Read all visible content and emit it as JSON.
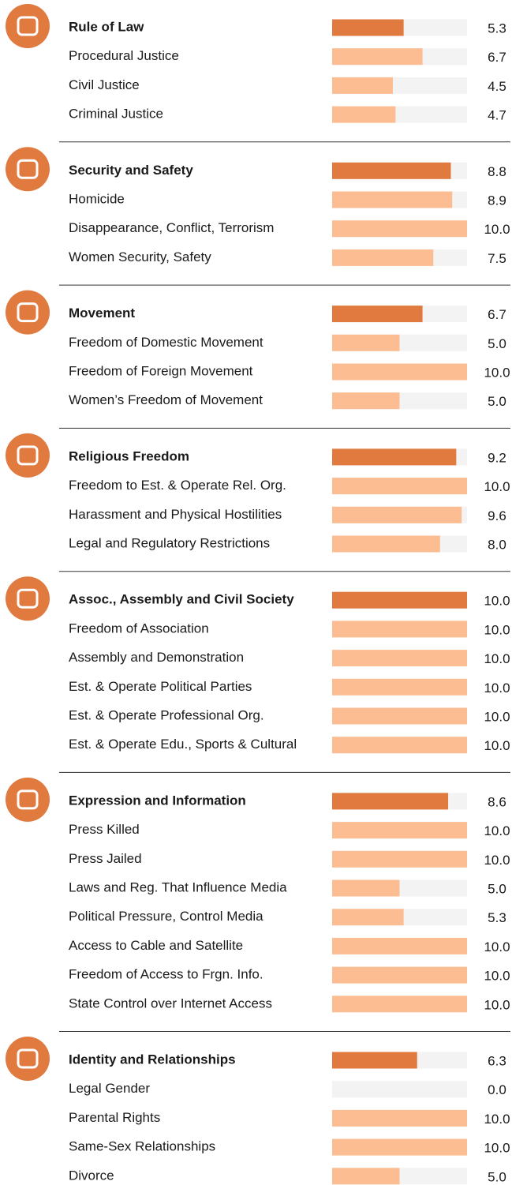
{
  "chart_data": {
    "type": "bar",
    "xlim": [
      0,
      10
    ],
    "main_color": "#e07a3f",
    "sub_color": "#fdbd92",
    "track_color": "#f3f3f3",
    "groups": [
      {
        "name": "Rule of Law",
        "value": 5.3,
        "categories": [
          "Procedural Justice",
          "Civil Justice",
          "Criminal Justice"
        ],
        "values": [
          6.7,
          4.5,
          4.7
        ]
      },
      {
        "name": "Security and Safety",
        "value": 8.8,
        "categories": [
          "Homicide",
          "Disappearance, Conflict, Terrorism",
          "Women Security, Safety"
        ],
        "values": [
          8.9,
          10,
          7.5
        ],
        "value_labels": [
          "8.9",
          "10.0",
          "7.5"
        ]
      },
      {
        "name": "Movement",
        "value": 6.7,
        "categories": [
          "Freedom of Domestic Movement",
          "Freedom of Foreign Movement",
          "Women’s Freedom of Movement"
        ],
        "values": [
          5,
          10,
          5
        ],
        "value_labels": [
          "5.0",
          "10.0",
          "5.0"
        ]
      },
      {
        "name": "Religious Freedom",
        "value": 9.2,
        "categories": [
          "Freedom to Est. & Operate Rel. Org.",
          "Harassment and Physical Hostilities",
          "Legal and Regulatory Restrictions"
        ],
        "values": [
          10,
          9.6,
          8
        ],
        "value_labels": [
          "10.0",
          "9.6",
          "8.0"
        ]
      },
      {
        "name": "Assoc., Assembly and Civil Society",
        "value": 10,
        "value_label": "10.0",
        "categories": [
          "Freedom of Association",
          "Assembly and Demonstration",
          "Est. & Operate Political Parties",
          "Est. & Operate Professional Org.",
          "Est. & Operate Edu., Sports & Cultural"
        ],
        "values": [
          10,
          10,
          10,
          10,
          10
        ],
        "value_labels": [
          "10.0",
          "10.0",
          "10.0",
          "10.0",
          "10.0"
        ]
      },
      {
        "name": "Expression and Information",
        "value": 8.6,
        "categories": [
          "Press Killed",
          "Press Jailed",
          "Laws and Reg. That Influence Media",
          "Political Pressure, Control Media",
          "Access to Cable and Satellite",
          "Freedom of Access to Frgn. Info.",
          "State Control over Internet Access"
        ],
        "values": [
          10,
          10,
          5,
          5.3,
          10,
          10,
          10
        ],
        "value_labels": [
          "10.0",
          "10.0",
          "5.0",
          "5.3",
          "10.0",
          "10.0",
          "10.0"
        ]
      },
      {
        "name": "Identity and Relationships",
        "value": 6.3,
        "categories": [
          "Legal Gender",
          "Parental Rights",
          "Same-Sex Relationships",
          "Divorce"
        ],
        "values": [
          0,
          10,
          10,
          5
        ],
        "value_labels": [
          "0.0",
          "10.0",
          "10.0",
          "5.0"
        ]
      }
    ]
  }
}
